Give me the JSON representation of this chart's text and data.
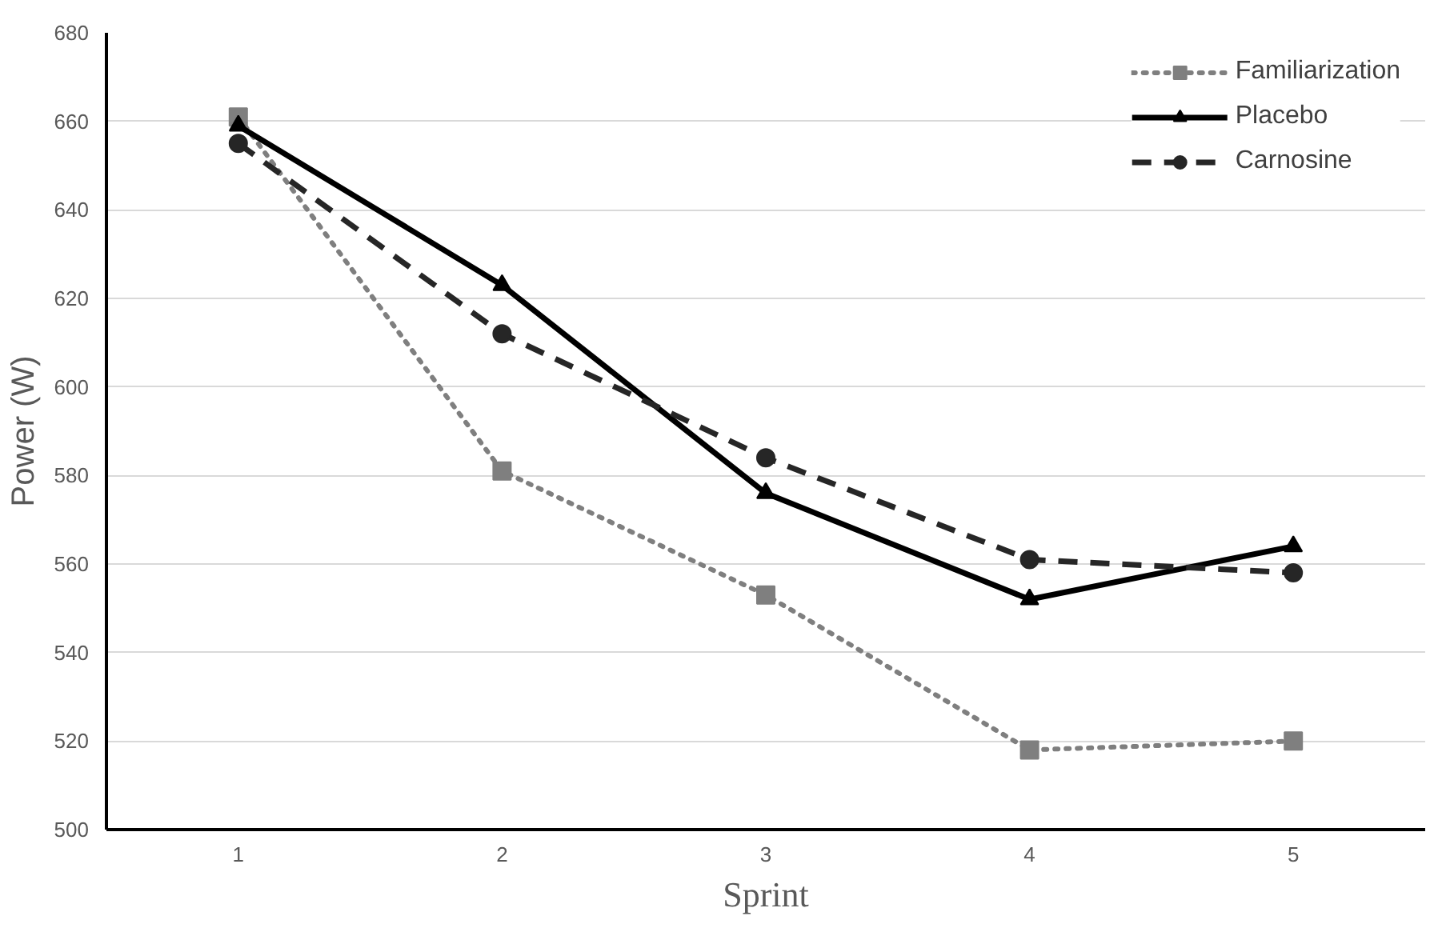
{
  "chart_data": {
    "type": "line",
    "xlabel": "Sprint",
    "ylabel": "Power (W)",
    "categories": [
      "1",
      "2",
      "3",
      "4",
      "5"
    ],
    "series": [
      {
        "name": "Familiarization",
        "color": "#7f7f7f",
        "marker": "square",
        "line_style": "dotted",
        "values": [
          661,
          581,
          553,
          518,
          520
        ]
      },
      {
        "name": "Placebo",
        "color": "#000000",
        "marker": "triangle",
        "line_style": "solid",
        "values": [
          659,
          623,
          576,
          552,
          564
        ]
      },
      {
        "name": "Carnosine",
        "color": "#262626",
        "marker": "circle",
        "line_style": "dashed",
        "values": [
          655,
          612,
          584,
          561,
          558
        ]
      }
    ],
    "ylim": [
      500,
      680
    ],
    "yticks": [
      500,
      520,
      540,
      560,
      580,
      600,
      620,
      640,
      660,
      680
    ],
    "grid": "y",
    "legend": "top right"
  }
}
